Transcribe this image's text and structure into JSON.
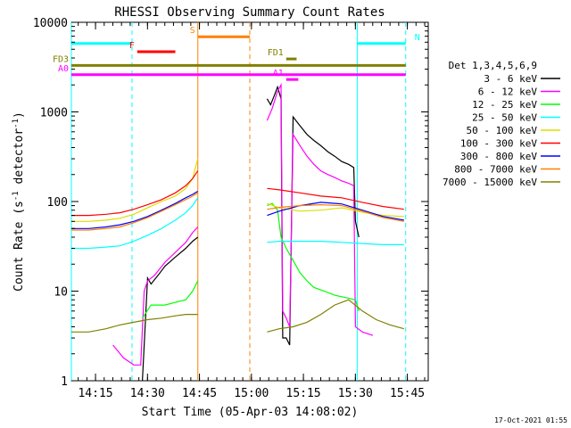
{
  "chart_data": {
    "type": "line",
    "title": "RHESSI Observing Summary Count Rates",
    "xlabel": "Start Time (05-Apr-03 14:08:02)",
    "ylabel": "Count Rate (s⁻¹ detector⁻¹)",
    "ylabel_parts": [
      "Count Rate (s",
      "-1",
      " detector",
      "-1",
      ")"
    ],
    "yscale": "log",
    "ylim": [
      1,
      10000
    ],
    "xlim_minutes": [
      0,
      103
    ],
    "x_ticks": [
      {
        "label": "14:15",
        "minutes": 6.97
      },
      {
        "label": "14:30",
        "minutes": 21.97
      },
      {
        "label": "14:45",
        "minutes": 36.97
      },
      {
        "label": "15:00",
        "minutes": 51.97
      },
      {
        "label": "15:15",
        "minutes": 66.97
      },
      {
        "label": "15:30",
        "minutes": 81.97
      },
      {
        "label": "15:45",
        "minutes": 96.97
      }
    ],
    "y_ticks": [
      {
        "label": "1",
        "value": 1
      },
      {
        "label": "10",
        "value": 10
      },
      {
        "label": "100",
        "value": 100
      },
      {
        "label": "1000",
        "value": 1000
      },
      {
        "label": "10000",
        "value": 10000
      }
    ],
    "legend_title": "Det 1,3,4,5,6,9",
    "legend_position": "right",
    "timestamp": "17-Oct-2021 01:55",
    "series": [
      {
        "name": "3 - 6 keV",
        "color": "#000000",
        "points": [
          [
            20.5,
            1
          ],
          [
            22,
            14
          ],
          [
            23,
            12
          ],
          [
            25,
            15
          ],
          [
            27,
            19
          ],
          [
            30,
            24
          ],
          [
            33,
            30
          ],
          [
            35,
            36
          ],
          [
            36.5,
            40
          ],
          [
            56.5,
            1400
          ],
          [
            57.5,
            1200
          ],
          [
            58.5,
            1500
          ],
          [
            59.5,
            1900
          ],
          [
            60.5,
            1400
          ],
          [
            61,
            3
          ],
          [
            62,
            3
          ],
          [
            63,
            2.5
          ],
          [
            64,
            880
          ],
          [
            66,
            700
          ],
          [
            68,
            560
          ],
          [
            70,
            480
          ],
          [
            72,
            420
          ],
          [
            74,
            360
          ],
          [
            76,
            320
          ],
          [
            78,
            280
          ],
          [
            80,
            260
          ],
          [
            81.5,
            240
          ],
          [
            82,
            60
          ],
          [
            83,
            40
          ]
        ]
      },
      {
        "name": "6 - 12 keV",
        "color": "#ff00ff",
        "points": [
          [
            12,
            2.5
          ],
          [
            15,
            1.8
          ],
          [
            18,
            1.5
          ],
          [
            20,
            1.5
          ],
          [
            21,
            10
          ],
          [
            22,
            13
          ],
          [
            24,
            15
          ],
          [
            27,
            21
          ],
          [
            30,
            27
          ],
          [
            33,
            35
          ],
          [
            35,
            45
          ],
          [
            36.5,
            52
          ],
          [
            56.5,
            800
          ],
          [
            58,
            1100
          ],
          [
            59.5,
            1700
          ],
          [
            60.5,
            2000
          ],
          [
            61,
            6
          ],
          [
            62,
            5
          ],
          [
            63,
            4
          ],
          [
            64,
            560
          ],
          [
            66,
            420
          ],
          [
            68,
            320
          ],
          [
            70,
            260
          ],
          [
            72,
            220
          ],
          [
            74,
            200
          ],
          [
            76,
            185
          ],
          [
            78,
            170
          ],
          [
            80,
            160
          ],
          [
            81.5,
            150
          ],
          [
            82,
            4
          ],
          [
            84,
            3.5
          ],
          [
            87,
            3.2
          ]
        ]
      },
      {
        "name": "12 - 25 keV",
        "color": "#00ff00",
        "points": [
          [
            20.5,
            5
          ],
          [
            23,
            7
          ],
          [
            27,
            7
          ],
          [
            30,
            7.5
          ],
          [
            33,
            8
          ],
          [
            35,
            10
          ],
          [
            36.5,
            13
          ],
          [
            56.5,
            90
          ],
          [
            58,
            95
          ],
          [
            59.5,
            80
          ],
          [
            60.5,
            40
          ],
          [
            62,
            30
          ],
          [
            64,
            22
          ],
          [
            66,
            16
          ],
          [
            68,
            13
          ],
          [
            70,
            11
          ],
          [
            73,
            10
          ],
          [
            76,
            9
          ],
          [
            79,
            8.5
          ],
          [
            82,
            8
          ],
          [
            83,
            6
          ]
        ]
      },
      {
        "name": "25 - 50 keV",
        "color": "#00ffff",
        "points": [
          [
            0,
            30
          ],
          [
            5,
            30
          ],
          [
            10,
            31
          ],
          [
            14,
            32
          ],
          [
            18,
            36
          ],
          [
            22,
            42
          ],
          [
            26,
            50
          ],
          [
            30,
            62
          ],
          [
            33,
            75
          ],
          [
            35,
            90
          ],
          [
            36.5,
            110
          ],
          [
            56.5,
            35
          ],
          [
            60,
            36
          ],
          [
            66,
            36
          ],
          [
            72,
            36
          ],
          [
            78,
            35
          ],
          [
            84,
            34
          ],
          [
            90,
            33
          ],
          [
            96,
            33
          ]
        ]
      },
      {
        "name": "50 - 100 keV",
        "color": "#dddd00",
        "points": [
          [
            0,
            60
          ],
          [
            5,
            60
          ],
          [
            10,
            62
          ],
          [
            14,
            65
          ],
          [
            18,
            72
          ],
          [
            22,
            85
          ],
          [
            26,
            100
          ],
          [
            30,
            115
          ],
          [
            33,
            140
          ],
          [
            35,
            180
          ],
          [
            36.5,
            300
          ],
          [
            56.5,
            95
          ],
          [
            60,
            85
          ],
          [
            66,
            78
          ],
          [
            72,
            80
          ],
          [
            78,
            85
          ],
          [
            84,
            76
          ],
          [
            90,
            70
          ],
          [
            96,
            68
          ]
        ]
      },
      {
        "name": "100 - 300 keV",
        "color": "#ff0000",
        "points": [
          [
            0,
            70
          ],
          [
            5,
            70
          ],
          [
            10,
            72
          ],
          [
            14,
            75
          ],
          [
            18,
            82
          ],
          [
            22,
            92
          ],
          [
            26,
            105
          ],
          [
            30,
            125
          ],
          [
            33,
            150
          ],
          [
            35,
            180
          ],
          [
            36.5,
            220
          ],
          [
            56.5,
            140
          ],
          [
            60,
            135
          ],
          [
            66,
            125
          ],
          [
            72,
            115
          ],
          [
            78,
            110
          ],
          [
            84,
            98
          ],
          [
            90,
            88
          ],
          [
            96,
            82
          ]
        ]
      },
      {
        "name": "300 - 800 keV",
        "color": "#0000ff",
        "points": [
          [
            0,
            50
          ],
          [
            5,
            50
          ],
          [
            10,
            52
          ],
          [
            14,
            55
          ],
          [
            18,
            60
          ],
          [
            22,
            68
          ],
          [
            26,
            80
          ],
          [
            30,
            95
          ],
          [
            33,
            110
          ],
          [
            35,
            120
          ],
          [
            36.5,
            130
          ],
          [
            56.5,
            70
          ],
          [
            60,
            78
          ],
          [
            66,
            90
          ],
          [
            72,
            98
          ],
          [
            78,
            94
          ],
          [
            84,
            80
          ],
          [
            90,
            68
          ],
          [
            96,
            62
          ]
        ]
      },
      {
        "name": "800 - 7000 keV",
        "color": "#ff8000",
        "points": [
          [
            0,
            48
          ],
          [
            5,
            48
          ],
          [
            10,
            50
          ],
          [
            14,
            52
          ],
          [
            18,
            58
          ],
          [
            22,
            66
          ],
          [
            26,
            78
          ],
          [
            30,
            92
          ],
          [
            33,
            105
          ],
          [
            35,
            115
          ],
          [
            36.5,
            125
          ],
          [
            56.5,
            82
          ],
          [
            60,
            86
          ],
          [
            66,
            90
          ],
          [
            72,
            92
          ],
          [
            78,
            90
          ],
          [
            84,
            78
          ],
          [
            90,
            66
          ],
          [
            96,
            60
          ]
        ]
      },
      {
        "name": "7000 - 15000 keV",
        "color": "#808000",
        "points": [
          [
            0,
            3.5
          ],
          [
            5,
            3.5
          ],
          [
            10,
            3.8
          ],
          [
            14,
            4.2
          ],
          [
            18,
            4.5
          ],
          [
            22,
            4.8
          ],
          [
            26,
            5
          ],
          [
            30,
            5.3
          ],
          [
            33,
            5.5
          ],
          [
            36.5,
            5.5
          ],
          [
            56.5,
            3.5
          ],
          [
            60,
            3.8
          ],
          [
            64,
            4
          ],
          [
            68,
            4.5
          ],
          [
            72,
            5.5
          ],
          [
            76,
            7
          ],
          [
            80,
            8
          ],
          [
            84,
            6
          ],
          [
            88,
            4.8
          ],
          [
            92,
            4.2
          ],
          [
            96,
            3.8
          ]
        ]
      }
    ],
    "state_bars": [
      {
        "label": "N",
        "color": "#00ffff",
        "segments": [
          [
            0,
            17.5
          ],
          [
            82.5,
            96.5
          ]
        ],
        "level": 5800
      },
      {
        "label": "F",
        "color": "#ff0000",
        "segments": [
          [
            19,
            30
          ]
        ],
        "level": 4700
      },
      {
        "label": "S",
        "color": "#ff8000",
        "segments": [
          [
            36.5,
            51.5
          ]
        ],
        "level": 6900
      },
      {
        "label": "FD1",
        "color": "#808000",
        "segments": [
          [
            62,
            65
          ]
        ],
        "level": 3900
      },
      {
        "label": "FD3",
        "color": "#808000",
        "segments": [
          [
            0,
            96.5
          ]
        ],
        "level": 3300
      },
      {
        "label": "A0",
        "color": "#ff00ff",
        "segments": [
          [
            0,
            96.5
          ]
        ],
        "level": 2600
      },
      {
        "label": "A1",
        "color": "#ff00ff",
        "segments": [
          [
            62,
            65.5
          ]
        ],
        "level": 2300
      }
    ],
    "vertical_lines": [
      {
        "minutes": 0,
        "color": "#00ffff",
        "style": "solid"
      },
      {
        "minutes": 17.5,
        "color": "#00ffff",
        "style": "dashed"
      },
      {
        "minutes": 36.5,
        "color": "#ff8000",
        "style": "solid"
      },
      {
        "minutes": 51.5,
        "color": "#ff8000",
        "style": "dashed"
      },
      {
        "minutes": 82.5,
        "color": "#00ffff",
        "style": "solid"
      },
      {
        "minutes": 96.5,
        "color": "#00ffff",
        "style": "dashed"
      }
    ]
  }
}
